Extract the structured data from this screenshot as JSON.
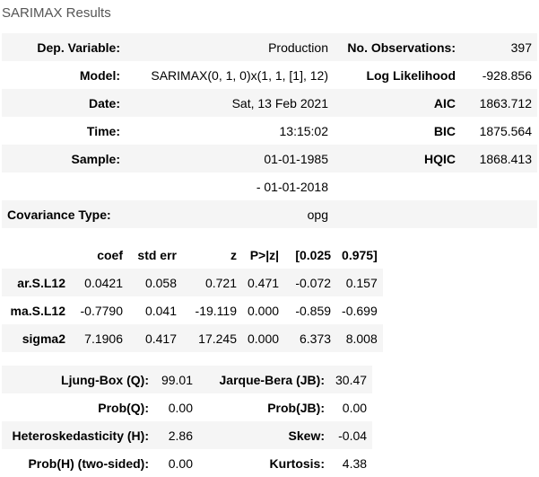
{
  "caption": "SARIMAX Results",
  "summary": {
    "rows": [
      [
        "Dep. Variable:",
        "Production",
        "No. Observations:",
        "397"
      ],
      [
        "Model:",
        "SARIMAX(0, 1, 0)x(1, 1, [1], 12)",
        "Log Likelihood",
        "-928.856"
      ],
      [
        "Date:",
        "Sat, 13 Feb 2021",
        "AIC",
        "1863.712"
      ],
      [
        "Time:",
        "13:15:02",
        "BIC",
        "1875.564"
      ],
      [
        "Sample:",
        "01-01-1985",
        "HQIC",
        "1868.413"
      ],
      [
        "",
        "- 01-01-2018",
        "",
        ""
      ],
      [
        "Covariance Type:",
        "opg",
        "",
        ""
      ]
    ]
  },
  "coefficients": {
    "headers": [
      "",
      "coef",
      "std err",
      "z",
      "P>|z|",
      "[0.025",
      "0.975]"
    ],
    "rows": [
      [
        "ar.S.L12",
        "0.0421",
        "0.058",
        "0.721",
        "0.471",
        "-0.072",
        "0.157"
      ],
      [
        "ma.S.L12",
        "-0.7790",
        "0.041",
        "-19.119",
        "0.000",
        "-0.859",
        "-0.699"
      ],
      [
        "sigma2",
        "7.1906",
        "0.417",
        "17.245",
        "0.000",
        "6.373",
        "8.008"
      ]
    ]
  },
  "diagnostics": {
    "rows": [
      [
        "Ljung-Box (Q):",
        "99.01",
        "Jarque-Bera (JB):",
        "30.47"
      ],
      [
        "Prob(Q):",
        "0.00",
        "Prob(JB):",
        "0.00"
      ],
      [
        "Heteroskedasticity (H):",
        "2.86",
        "Skew:",
        "-0.04"
      ],
      [
        "Prob(H) (two-sided):",
        "0.00",
        "Kurtosis:",
        "4.38"
      ]
    ]
  }
}
